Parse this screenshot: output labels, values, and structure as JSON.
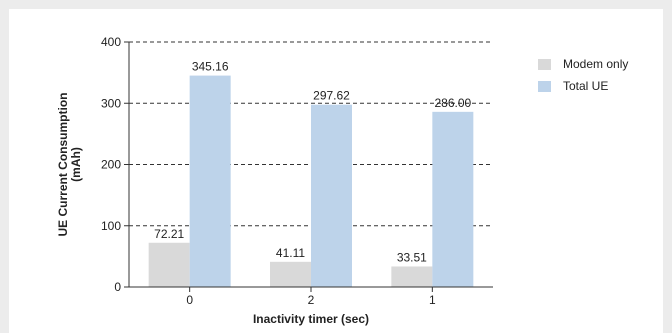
{
  "chart_data": {
    "type": "bar",
    "categories": [
      "0",
      "2",
      "1"
    ],
    "series": [
      {
        "name": "Modem only",
        "values": [
          72.21,
          41.11,
          33.51
        ],
        "labels": [
          "72.21",
          "41.11",
          "33.51"
        ],
        "color": "#d9d9d9"
      },
      {
        "name": "Total UE",
        "values": [
          345.16,
          297.62,
          286.0
        ],
        "labels": [
          "345.16",
          "297.62",
          "286.00"
        ],
        "color": "#bdd3ea"
      }
    ],
    "xlabel": "Inactivity timer (sec)",
    "ylabel": "UE Current Consumption\n(mAh)",
    "ylim": [
      0,
      400
    ],
    "yticks": [
      0,
      100,
      200,
      300,
      400
    ],
    "grid": true,
    "legend_position": "right"
  }
}
